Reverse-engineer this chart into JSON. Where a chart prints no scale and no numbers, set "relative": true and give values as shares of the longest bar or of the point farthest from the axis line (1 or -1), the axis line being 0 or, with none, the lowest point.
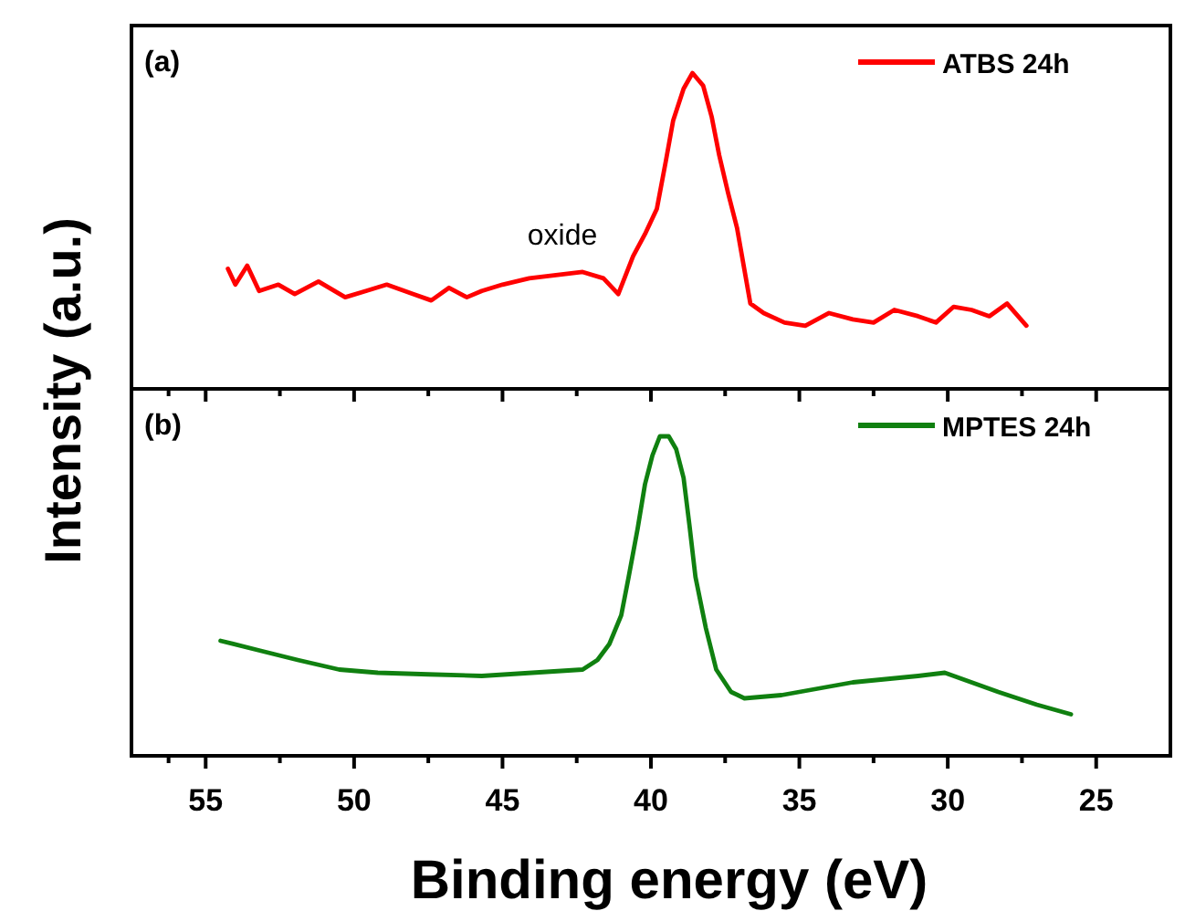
{
  "chart_data": [
    {
      "type": "line",
      "relative": true,
      "xlim": [
        57.5,
        22.5
      ],
      "tick_labels": false,
      "ylabel": "Intensity (a.u.)",
      "legend": "top right",
      "annotations": [
        "(a)",
        "oxide"
      ],
      "series": [
        {
          "name": "ATBS 24h",
          "color": "#ff0000",
          "x": [
            54.25,
            54.0,
            53.6,
            53.2,
            52.55,
            52.0,
            51.2,
            50.3,
            49.6,
            48.9,
            48.0,
            47.4,
            46.8,
            46.2,
            45.7,
            45.0,
            44.1,
            43.2,
            42.3,
            41.6,
            41.1,
            40.6,
            40.2,
            39.8,
            39.5,
            39.25,
            38.9,
            38.6,
            38.24,
            37.95,
            37.7,
            37.4,
            37.1,
            36.65,
            36.2,
            35.5,
            34.8,
            34.0,
            33.2,
            32.5,
            31.8,
            31.0,
            30.4,
            29.8,
            29.2,
            28.6,
            28.0,
            27.35
          ],
          "values": [
            0.38,
            0.33,
            0.39,
            0.31,
            0.33,
            0.3,
            0.34,
            0.29,
            0.31,
            0.33,
            0.3,
            0.28,
            0.32,
            0.29,
            0.31,
            0.33,
            0.35,
            0.36,
            0.37,
            0.35,
            0.3,
            0.42,
            0.49,
            0.57,
            0.72,
            0.85,
            0.95,
            1,
            0.96,
            0.86,
            0.74,
            0.62,
            0.51,
            0.27,
            0.24,
            0.21,
            0.2,
            0.24,
            0.22,
            0.21,
            0.25,
            0.23,
            0.21,
            0.26,
            0.25,
            0.23,
            0.27,
            0.2
          ]
        }
      ]
    },
    {
      "type": "line",
      "relative": true,
      "xlim": [
        57.5,
        22.5
      ],
      "tick_labels": "x",
      "xlabel": "Binding energy (eV)",
      "legend": "top right",
      "annotations": [
        "(b)"
      ],
      "xticks": [
        {
          "value": 56.25,
          "label": null
        },
        55,
        {
          "value": 52.5,
          "label": null
        },
        50,
        {
          "value": 47.5,
          "label": null
        },
        45,
        {
          "value": 42.5,
          "label": null
        },
        40,
        {
          "value": 37.5,
          "label": null
        },
        35,
        {
          "value": 32.5,
          "label": null
        },
        30,
        {
          "value": 27.5,
          "label": null
        },
        25
      ],
      "series": [
        {
          "name": "MPTES 24h",
          "color": "#108010",
          "x": [
            54.5,
            53.2,
            51.9,
            50.5,
            49.2,
            47.5,
            45.7,
            44.0,
            42.3,
            41.8,
            41.4,
            41.0,
            40.75,
            40.45,
            40.2,
            39.95,
            39.7,
            39.4,
            39.15,
            38.9,
            38.7,
            38.5,
            38.15,
            37.8,
            37.3,
            36.85,
            35.6,
            34.4,
            33.2,
            32.1,
            31.0,
            30.1,
            29.2,
            28.3,
            27.0,
            25.85
          ],
          "values": [
            0.36,
            0.33,
            0.3,
            0.27,
            0.26,
            0.255,
            0.25,
            0.26,
            0.27,
            0.3,
            0.35,
            0.44,
            0.56,
            0.71,
            0.85,
            0.94,
            1,
            1,
            0.96,
            0.87,
            0.72,
            0.56,
            0.4,
            0.27,
            0.2,
            0.18,
            0.19,
            0.21,
            0.23,
            0.24,
            0.25,
            0.26,
            0.23,
            0.2,
            0.16,
            0.13
          ]
        }
      ]
    }
  ]
}
